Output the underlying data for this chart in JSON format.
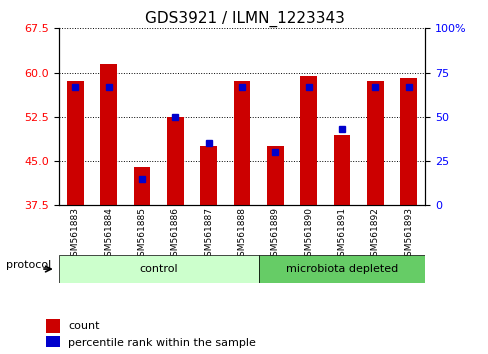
{
  "title": "GDS3921 / ILMN_1223343",
  "samples": [
    "GSM561883",
    "GSM561884",
    "GSM561885",
    "GSM561886",
    "GSM561887",
    "GSM561888",
    "GSM561889",
    "GSM561890",
    "GSM561891",
    "GSM561892",
    "GSM561893"
  ],
  "count_values": [
    58.5,
    61.5,
    44.0,
    52.5,
    47.5,
    58.5,
    47.5,
    59.5,
    49.5,
    58.5,
    59.0
  ],
  "percentile_values": [
    67,
    67,
    15,
    50,
    35,
    67,
    30,
    67,
    43,
    67,
    67
  ],
  "left_ylim": [
    37.5,
    67.5
  ],
  "left_yticks": [
    37.5,
    45.0,
    52.5,
    60.0,
    67.5
  ],
  "right_ylim": [
    0,
    100
  ],
  "right_yticks": [
    0,
    25,
    50,
    75,
    100
  ],
  "bar_color": "#cc0000",
  "percentile_color": "#0000cc",
  "grid_color": "#000000",
  "control_color": "#ccffcc",
  "microbiota_color": "#66cc66",
  "n_control": 6,
  "n_microbiota": 5,
  "control_label": "control",
  "microbiota_label": "microbiota depleted",
  "protocol_label": "protocol",
  "legend_count": "count",
  "legend_percentile": "percentile rank within the sample",
  "bar_width": 0.5,
  "title_fontsize": 11,
  "tick_fontsize": 8,
  "label_fontsize": 8
}
